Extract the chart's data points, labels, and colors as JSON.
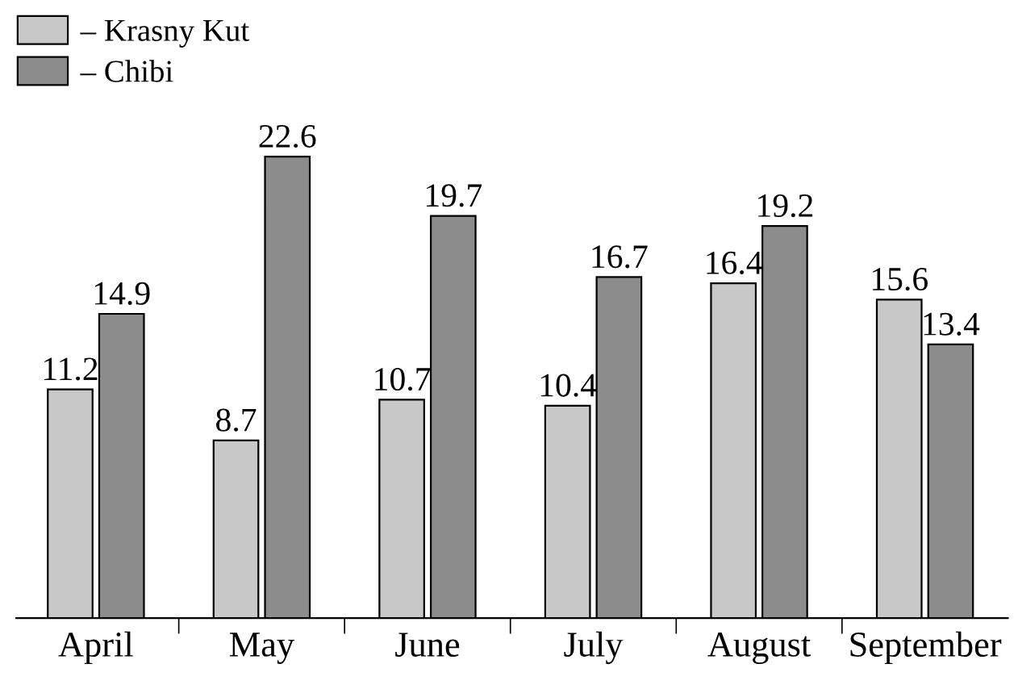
{
  "chart_data": {
    "type": "bar",
    "categories": [
      "April",
      "May",
      "June",
      "July",
      "August",
      "September"
    ],
    "series": [
      {
        "name": "– Krasny Kut",
        "color": "#c8c8c8",
        "values": [
          11.2,
          8.7,
          10.7,
          10.4,
          16.4,
          15.6
        ]
      },
      {
        "name": "– Chibi",
        "color": "#8c8c8c",
        "values": [
          14.9,
          22.6,
          19.7,
          16.7,
          19.2,
          13.4
        ]
      }
    ],
    "data_labels": true,
    "legend": "top left",
    "grid": false
  }
}
